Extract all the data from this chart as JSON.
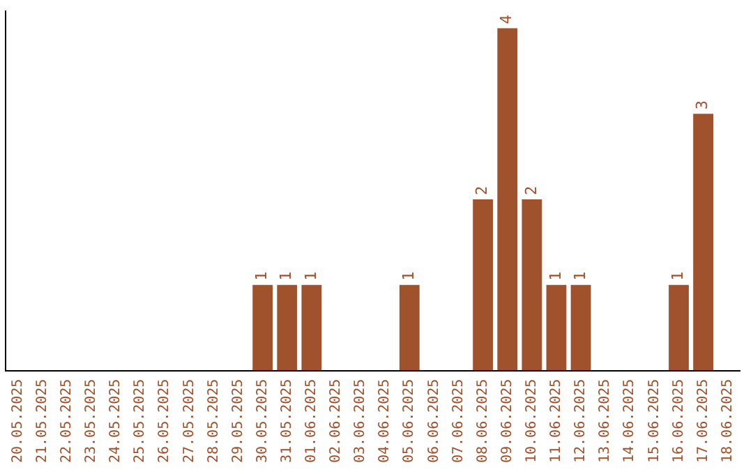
{
  "chart_data": {
    "type": "bar",
    "categories": [
      "20.05.2025",
      "21.05.2025",
      "22.05.2025",
      "23.05.2025",
      "24.05.2025",
      "25.05.2025",
      "26.05.2025",
      "27.05.2025",
      "28.05.2025",
      "29.05.2025",
      "30.05.2025",
      "31.05.2025",
      "01.06.2025",
      "02.06.2025",
      "03.06.2025",
      "04.06.2025",
      "05.06.2025",
      "06.06.2025",
      "07.06.2025",
      "08.06.2025",
      "09.06.2025",
      "10.06.2025",
      "11.06.2025",
      "12.06.2025",
      "13.06.2025",
      "14.06.2025",
      "15.06.2025",
      "16.06.2025",
      "17.06.2025",
      "18.06.2025"
    ],
    "values": [
      0,
      0,
      0,
      0,
      0,
      0,
      0,
      0,
      0,
      0,
      1,
      1,
      1,
      0,
      0,
      0,
      1,
      0,
      0,
      2,
      4,
      2,
      1,
      1,
      0,
      0,
      0,
      1,
      3,
      0
    ],
    "value_labels": [
      null,
      null,
      null,
      null,
      null,
      null,
      null,
      null,
      null,
      null,
      "1",
      "1",
      "1",
      null,
      null,
      null,
      "1",
      null,
      null,
      "2",
      "4",
      "2",
      "1",
      "1",
      null,
      null,
      null,
      "1",
      "3",
      null
    ],
    "color": "#a0522d",
    "ylim": [
      0,
      4.2
    ],
    "tick_labels": "x",
    "grid": false,
    "legend": false
  }
}
